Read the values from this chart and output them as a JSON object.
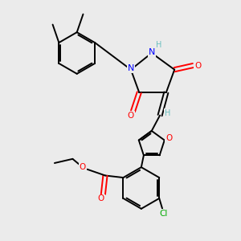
{
  "background_color": "#ebebeb",
  "atom_colors": {
    "C": "#000000",
    "H": "#6abfbf",
    "N": "#0000ff",
    "O": "#ff0000",
    "Cl": "#00aa00"
  },
  "bond_color": "#000000",
  "figsize": [
    3.0,
    3.0
  ],
  "dpi": 100
}
